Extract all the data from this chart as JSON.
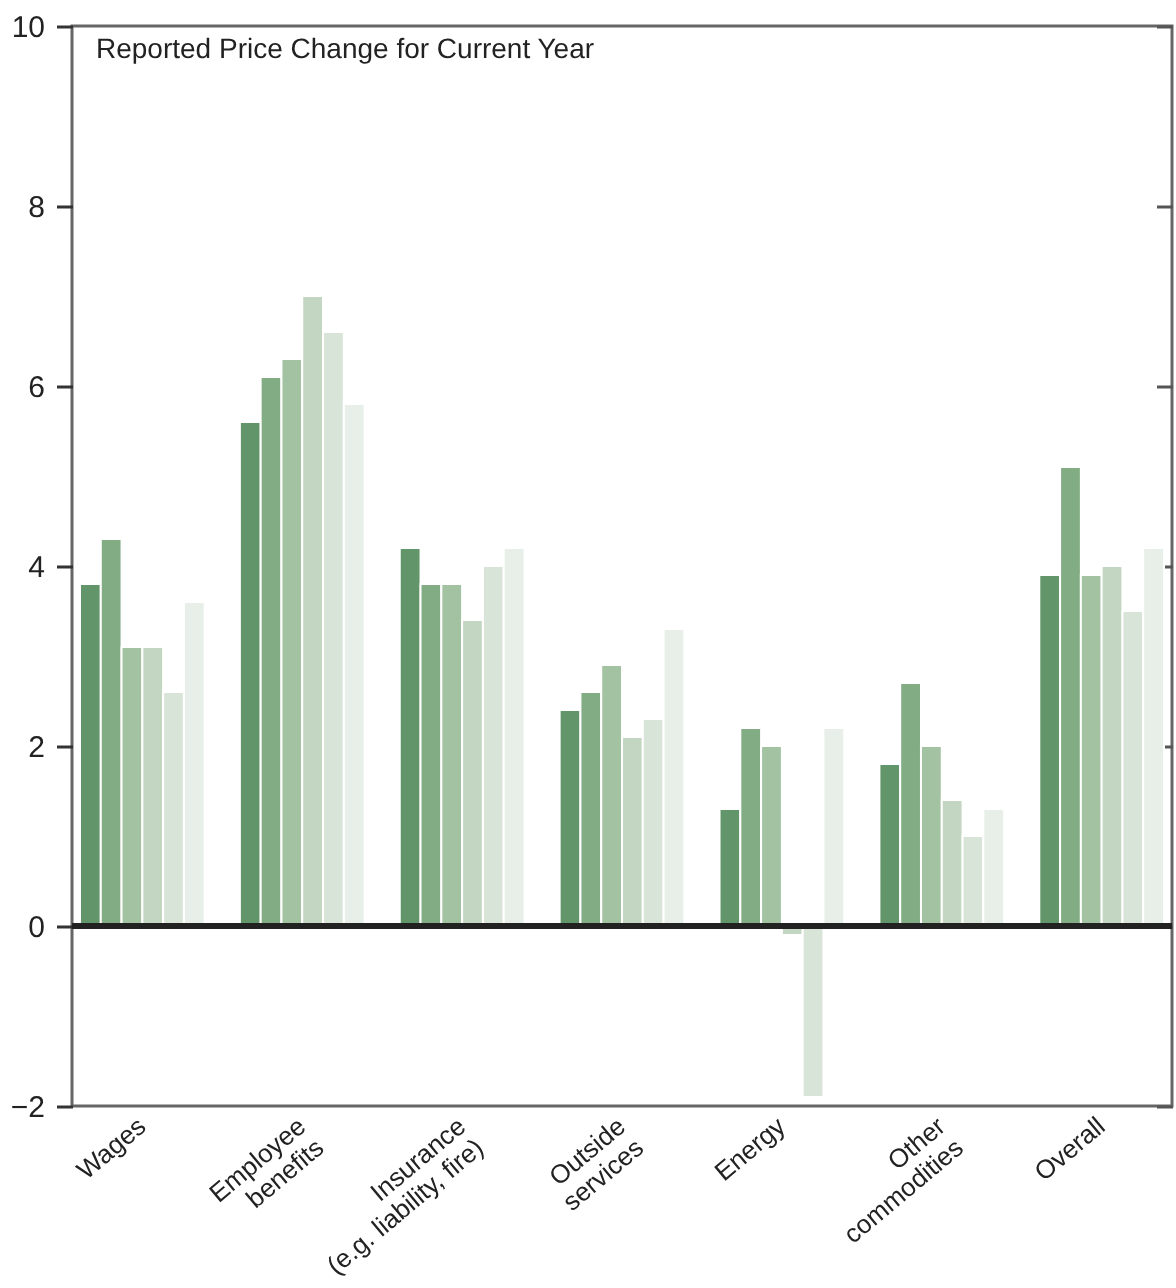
{
  "chart_data": {
    "type": "bar",
    "title": "Reported Price Change for Current Year",
    "categories": [
      "Wages",
      "Employee\nbenefits",
      "Insurance\n(e.g. liability, fire)",
      "Outside\nservices",
      "Energy",
      "Other\ncommodities",
      "Overall"
    ],
    "series": [
      {
        "color": "#62966a",
        "values": [
          3.8,
          5.6,
          4.2,
          2.4,
          1.3,
          1.8,
          3.9
        ]
      },
      {
        "color": "#82ac84",
        "values": [
          4.3,
          6.1,
          3.8,
          2.6,
          2.2,
          2.7,
          5.1
        ]
      },
      {
        "color": "#a2c2a2",
        "values": [
          3.1,
          6.3,
          3.8,
          2.9,
          2.0,
          2.0,
          3.9
        ]
      },
      {
        "color": "#c2d6c2",
        "values": [
          3.1,
          7.0,
          3.4,
          2.1,
          -0.1,
          1.4,
          4.0
        ]
      },
      {
        "color": "#d9e4d9",
        "values": [
          2.6,
          6.6,
          4.0,
          2.3,
          -1.9,
          1.0,
          3.5
        ]
      },
      {
        "color": "#e8eee8",
        "values": [
          3.6,
          5.8,
          4.2,
          3.3,
          2.2,
          1.3,
          4.2
        ]
      }
    ],
    "ylim": [
      -2,
      10
    ],
    "yticks": [
      -2,
      0,
      2,
      4,
      6,
      8,
      10
    ],
    "grid": false,
    "legend": false,
    "ref_lines": [
      {
        "axis": "y",
        "value": 0,
        "color": "#222222"
      }
    ]
  }
}
